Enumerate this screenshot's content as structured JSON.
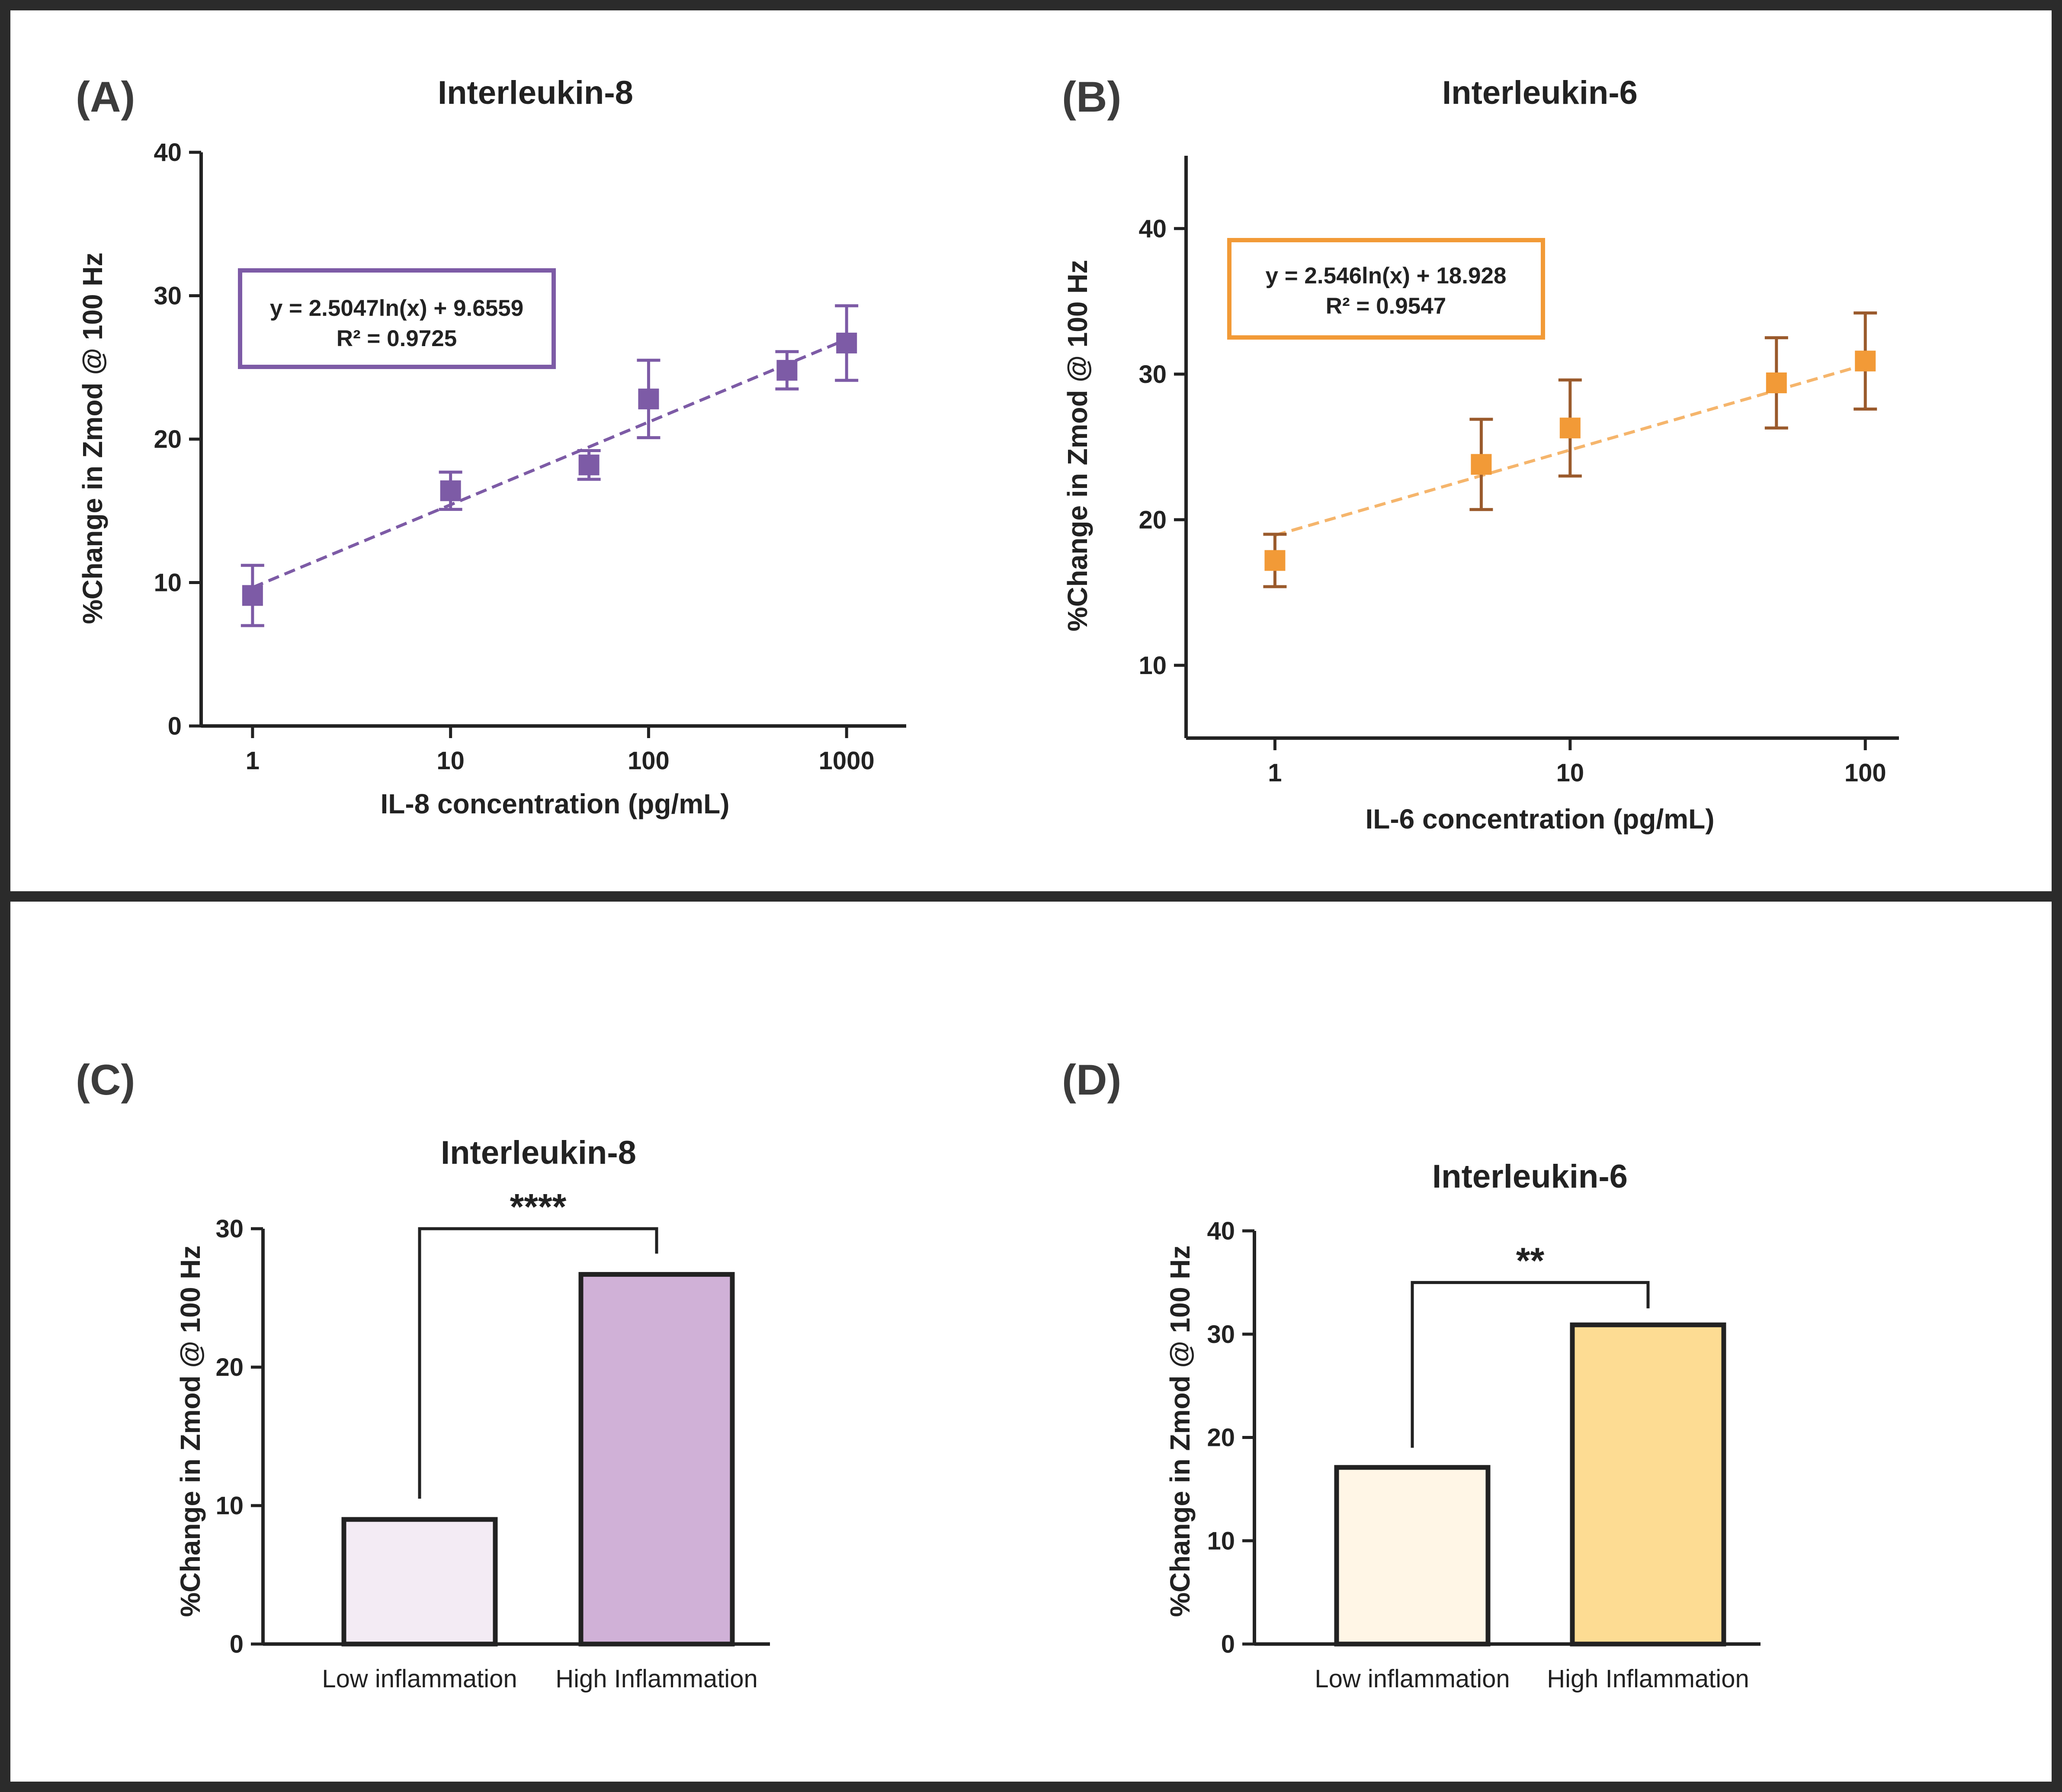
{
  "colors": {
    "il8_marker": "#7d5ba6",
    "il8_line": "#7d5ba6",
    "il6_marker": "#f29a37",
    "il6_error": "#9a5a2c",
    "il6_line": "#f5b56c",
    "bar_c_low": "#f3ebf4",
    "bar_c_high": "#d0b1d7",
    "bar_d_low": "#fff6e6",
    "bar_d_high": "#fddc93",
    "frame": "#2b2b2b"
  },
  "chart_data": [
    {
      "panel": "(A)",
      "type": "scatter",
      "title": "Interleukin-8",
      "xlabel": "IL-8 concentration (pg/mL)",
      "ylabel": "%Change in Zmod @ 100 Hz",
      "xscale": "log",
      "xlim": [
        0.55,
        2000
      ],
      "ylim": [
        0,
        40
      ],
      "xticks": [
        1,
        10,
        100,
        1000
      ],
      "xtick_labels": [
        "1",
        "10",
        "100",
        "1000"
      ],
      "yticks": [
        0,
        10,
        20,
        30,
        40
      ],
      "ytick_labels": [
        "0",
        "10",
        "20",
        "30",
        "40"
      ],
      "x": [
        1,
        10,
        50,
        100,
        500,
        1000
      ],
      "y": [
        9.1,
        16.4,
        18.2,
        22.8,
        24.8,
        26.7
      ],
      "err": [
        2.1,
        1.3,
        1.0,
        2.7,
        1.3,
        2.6
      ],
      "fit": {
        "a": 2.5047,
        "b": 9.6559,
        "x_range": [
          1,
          1000
        ]
      },
      "equation": "y = 2.5047ln(x) + 9.6559",
      "r2": "R² = 0.9725"
    },
    {
      "panel": "(B)",
      "type": "scatter",
      "title": "Interleukin-6",
      "xlabel": "IL-6 concentration (pg/mL)",
      "ylabel": "%Change in Zmod @ 100 Hz",
      "xscale": "log",
      "xlim": [
        0.5,
        130
      ],
      "ylim": [
        5,
        45
      ],
      "xticks": [
        1,
        10,
        100
      ],
      "xtick_labels": [
        "1",
        "10",
        "100"
      ],
      "yticks": [
        10,
        20,
        30,
        40
      ],
      "ytick_labels": [
        "10",
        "20",
        "30",
        "40"
      ],
      "x": [
        1,
        5,
        10,
        50,
        100
      ],
      "y": [
        17.2,
        23.8,
        26.3,
        29.4,
        30.9
      ],
      "err": [
        1.8,
        3.1,
        3.3,
        3.1,
        3.3
      ],
      "fit": {
        "a": 2.546,
        "b": 18.928,
        "x_range": [
          1,
          100
        ]
      },
      "equation": "y = 2.546ln(x) + 18.928",
      "r2": "R² = 0.9547"
    },
    {
      "panel": "(C)",
      "type": "bar",
      "title": "Interleukin-8",
      "ylabel": "%Change in Zmod @ 100 Hz",
      "ylim": [
        0,
        30
      ],
      "yticks": [
        0,
        10,
        20,
        30
      ],
      "ytick_labels": [
        "0",
        "10",
        "20",
        "30"
      ],
      "categories": [
        "Low inflammation",
        "High Inflammation"
      ],
      "values": [
        9.0,
        26.7
      ],
      "significance": "****",
      "bracket_y": [
        10.5,
        28.2,
        30.0
      ]
    },
    {
      "panel": "(D)",
      "type": "bar",
      "title": "Interleukin-6",
      "ylabel": "%Change in Zmod @ 100 Hz",
      "ylim": [
        0,
        40
      ],
      "yticks": [
        0,
        10,
        20,
        30,
        40
      ],
      "ytick_labels": [
        "0",
        "10",
        "20",
        "30",
        "40"
      ],
      "categories": [
        "Low inflammation",
        "High Inflammation"
      ],
      "values": [
        17.1,
        30.9
      ],
      "significance": "**",
      "bracket_y": [
        19.0,
        32.5,
        35.0
      ]
    }
  ]
}
